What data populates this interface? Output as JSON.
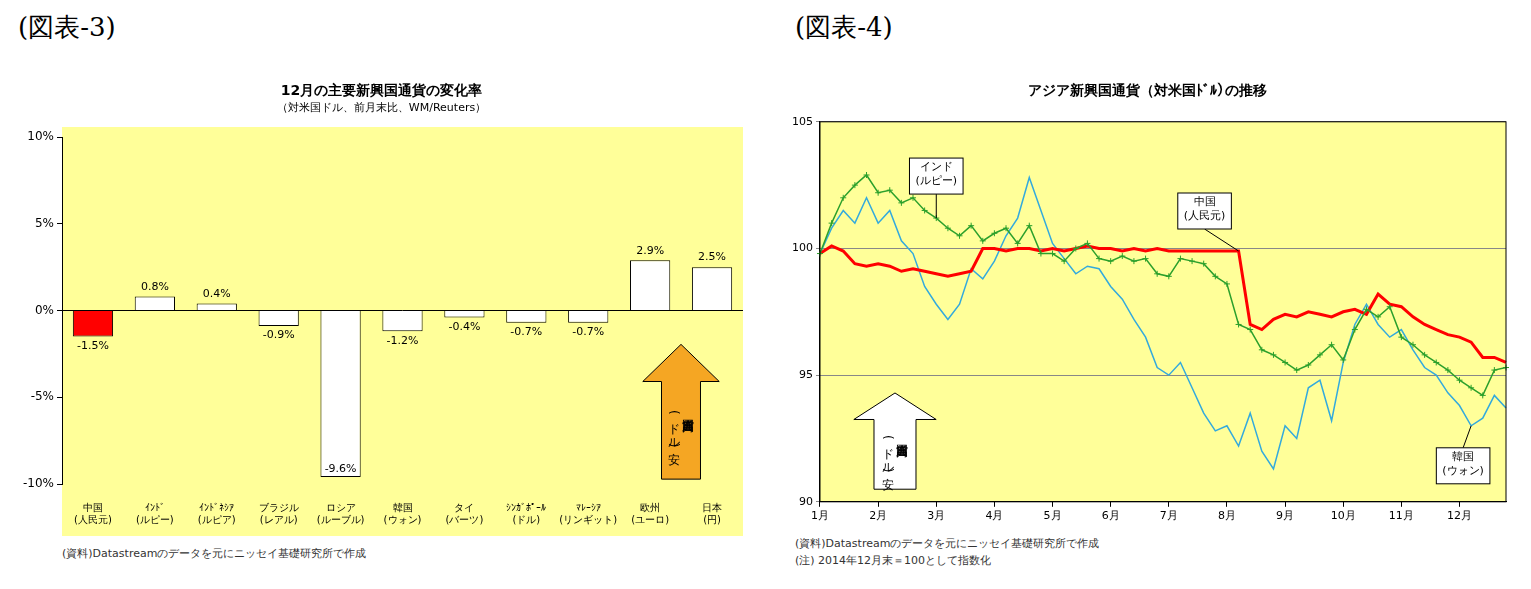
{
  "chart_data": [
    {
      "type": "bar",
      "header": "(図表-3)",
      "title": "12月の主要新興国通貨の変化率",
      "subtitle": "（対米国ドル、前月末比、WM/Reuters）",
      "categories": [
        "中国\n(人民元)",
        "ｲﾝﾄﾞ\n(ルピー)",
        "ｲﾝﾄﾞﾈｼｱ\n(ルピア)",
        "ブラジル\n(レアル)",
        "ロシア\n(ルーブル)",
        "韓国\n(ウォン)",
        "タイ\n(バーツ)",
        "ｼﾝｶﾞﾎﾟｰﾙ\n(ドル)",
        "ﾏﾚｰｼｱ\n(リンギット)",
        "欧州\n(ユーロ)",
        "日本\n(円)"
      ],
      "values": [
        -1.5,
        0.8,
        0.4,
        -0.9,
        -9.6,
        -1.2,
        -0.4,
        -0.7,
        -0.7,
        2.9,
        2.5
      ],
      "value_labels": [
        "-1.5%",
        "0.8%",
        "0.4%",
        "-0.9%",
        "-9.6%",
        "-1.2%",
        "-0.4%",
        "-0.7%",
        "-0.7%",
        "2.9%",
        "2.5%"
      ],
      "colors": [
        "#ff0000",
        "#ffffff",
        "#ffffff",
        "#ffffff",
        "#ffffff",
        "#ffffff",
        "#ffffff",
        "#ffffff",
        "#ffffff",
        "#ffffff",
        "#ffffff"
      ],
      "ylim": [
        -10,
        10
      ],
      "yticks": [
        {
          "value": -10,
          "label": "-10%"
        },
        {
          "value": -5,
          "label": "-5%"
        },
        {
          "value": 0,
          "label": "0%"
        },
        {
          "value": 5,
          "label": "5%"
        },
        {
          "value": 10,
          "label": "10%"
        }
      ],
      "grid": false,
      "data_labels": true,
      "annotation": "自国通貨高\n(ドル安)",
      "source": "(資料)Datastreamのデータを元にニッセイ基礎研究所で作成"
    },
    {
      "type": "line",
      "header": "(図表-4)",
      "title": "アジア新興国通貨（対米国ﾄﾞﾙ）の推移",
      "categories": [
        "1月",
        null,
        null,
        null,
        null,
        "2月",
        null,
        null,
        null,
        null,
        "3月",
        null,
        null,
        null,
        null,
        "4月",
        null,
        null,
        null,
        null,
        "5月",
        null,
        null,
        null,
        null,
        "6月",
        null,
        null,
        null,
        null,
        "7月",
        null,
        null,
        null,
        null,
        "8月",
        null,
        null,
        null,
        null,
        "9月",
        null,
        null,
        null,
        null,
        "10月",
        null,
        null,
        null,
        null,
        "11月",
        null,
        null,
        null,
        null,
        "12月",
        null,
        null,
        null,
        null
      ],
      "series": [
        {
          "name": "インド\n(ルピー)",
          "color": "#2ca02c",
          "marker": "plus",
          "values": [
            99.8,
            101.0,
            102.0,
            102.5,
            102.9,
            102.2,
            102.3,
            101.8,
            102.0,
            101.5,
            101.2,
            100.8,
            100.5,
            100.9,
            100.3,
            100.6,
            100.8,
            100.2,
            100.9,
            99.8,
            99.8,
            99.5,
            100.0,
            100.2,
            99.6,
            99.5,
            99.7,
            99.5,
            99.6,
            99.0,
            98.9,
            99.6,
            99.5,
            99.4,
            98.9,
            98.6,
            97.0,
            96.8,
            96.0,
            95.8,
            95.5,
            95.2,
            95.4,
            95.8,
            96.2,
            95.6,
            96.8,
            97.6,
            97.3,
            97.7,
            96.5,
            96.2,
            95.8,
            95.5,
            95.2,
            94.8,
            94.5,
            94.2,
            95.2,
            95.3
          ]
        },
        {
          "name": "中国\n(人民元)",
          "color": "#ff0000",
          "marker": "none",
          "values": [
            99.8,
            100.1,
            99.9,
            99.4,
            99.3,
            99.4,
            99.3,
            99.1,
            99.2,
            99.1,
            99.0,
            98.9,
            99.0,
            99.1,
            100.0,
            100.0,
            99.9,
            100.0,
            100.0,
            99.9,
            100.0,
            99.9,
            100.0,
            100.1,
            100.0,
            100.0,
            99.9,
            100.0,
            99.9,
            100.0,
            99.9,
            99.9,
            99.9,
            99.9,
            99.9,
            99.9,
            99.9,
            97.0,
            96.8,
            97.2,
            97.4,
            97.3,
            97.5,
            97.4,
            97.3,
            97.5,
            97.6,
            97.4,
            98.2,
            97.8,
            97.7,
            97.3,
            97.0,
            96.8,
            96.6,
            96.5,
            96.3,
            95.7,
            95.7,
            95.5
          ]
        },
        {
          "name": "韓国\n(ウォン)",
          "color": "#33aadd",
          "marker": "none",
          "values": [
            99.8,
            100.8,
            101.5,
            101.0,
            102.0,
            101.0,
            101.5,
            100.3,
            99.8,
            98.5,
            97.8,
            97.2,
            97.8,
            99.2,
            98.8,
            99.5,
            100.5,
            101.2,
            102.8,
            101.5,
            100.2,
            99.6,
            99.0,
            99.3,
            99.2,
            98.5,
            98.0,
            97.2,
            96.5,
            95.3,
            95.0,
            95.5,
            94.5,
            93.5,
            92.8,
            93.0,
            92.2,
            93.5,
            92.0,
            91.3,
            93.0,
            92.5,
            94.5,
            94.8,
            93.2,
            95.5,
            97.0,
            97.8,
            97.0,
            96.5,
            96.8,
            96.0,
            95.3,
            95.0,
            94.3,
            93.8,
            93.0,
            93.3,
            94.2,
            93.7
          ]
        }
      ],
      "ylim": [
        90,
        105
      ],
      "yticks": [
        90,
        95,
        100,
        105
      ],
      "grid": true,
      "annotation": "自国通貨高\n(ドル安)",
      "source": "(資料)Datastreamのデータを元にニッセイ基礎研究所で作成",
      "note": "(注) 2014年12月末＝100として指数化"
    }
  ]
}
